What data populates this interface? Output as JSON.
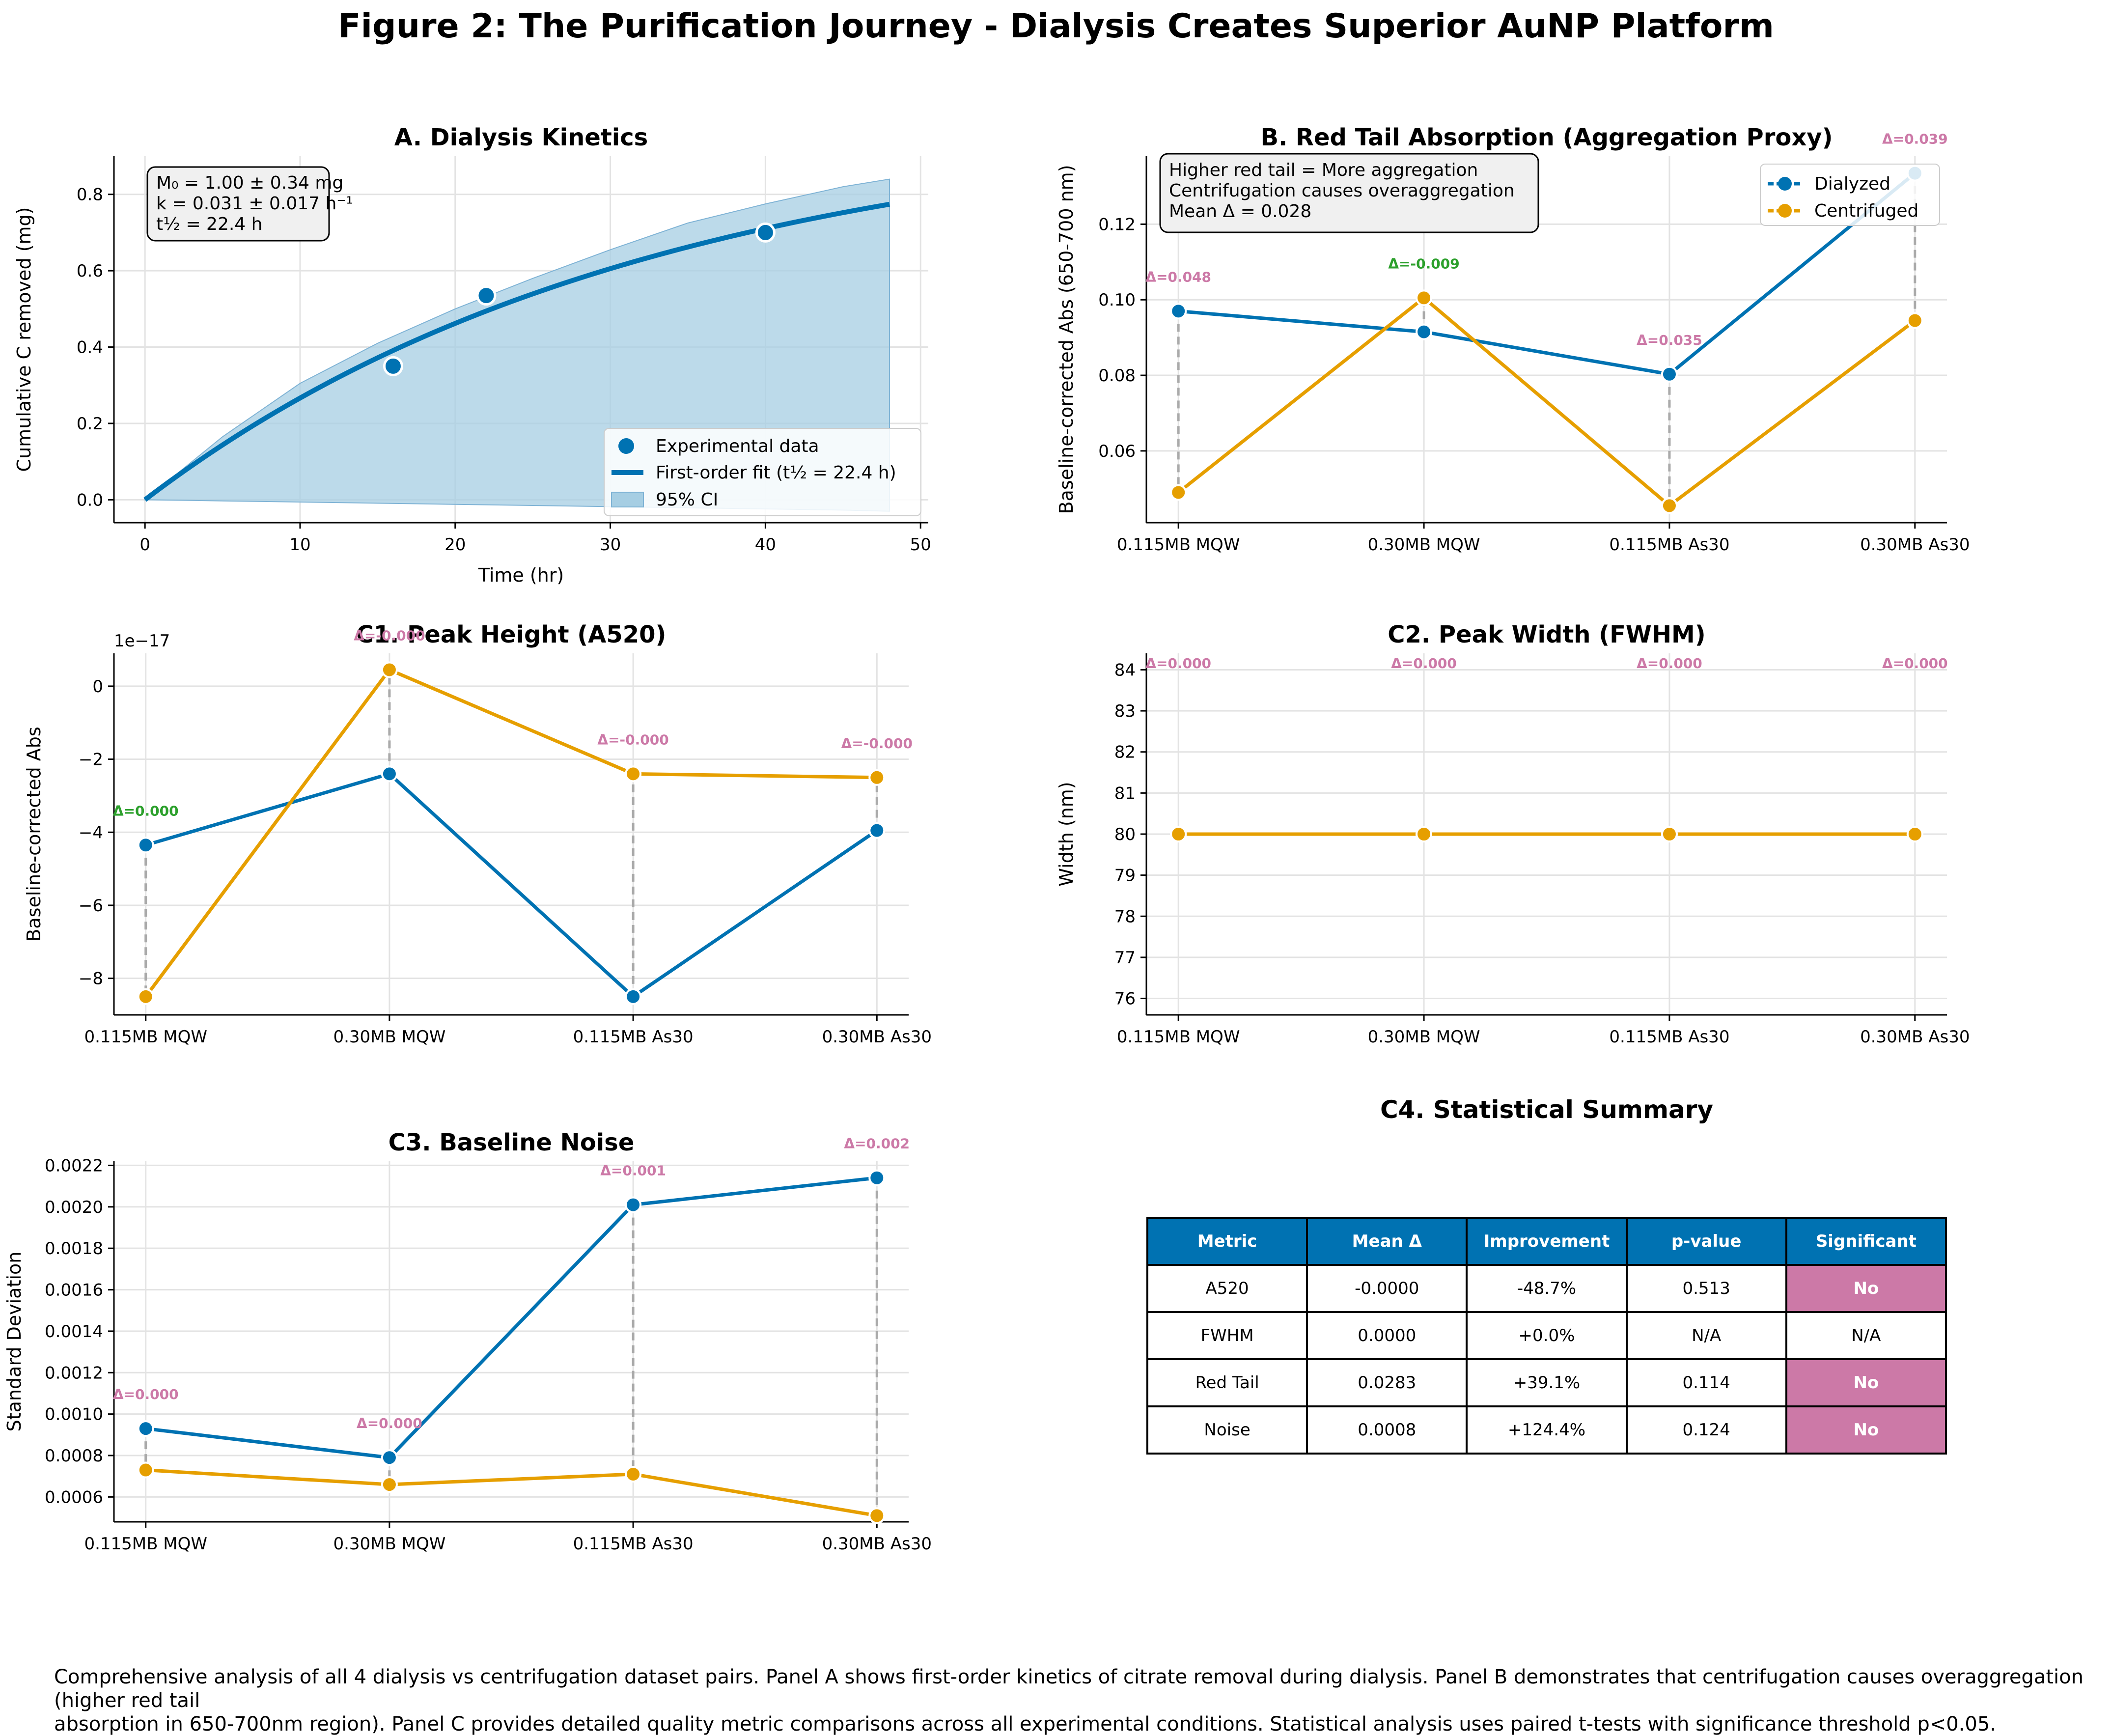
{
  "figure_title": "Figure 2: The Purification Journey - Dialysis Creates Superior AuNP Platform",
  "caption": "Comprehensive analysis of all 4 dialysis vs centrifugation dataset pairs. Panel A shows first-order kinetics of citrate removal during dialysis. Panel B demonstrates that centrifugation causes overaggregation (higher red tail\nabsorption in 650-700nm region). Panel C provides detailed quality metric comparisons across all experimental conditions. Statistical analysis uses paired t-tests with significance threshold p<0.05.",
  "colors": {
    "dialyzed": "#0072B2",
    "centrifuged": "#E69F00",
    "ci_fill": "#A6CEE3",
    "delta_pos": "#CC79A7",
    "delta_neg": "#2CA02C",
    "connector": "#AAAAAA"
  },
  "chart_data": [
    {
      "id": "A",
      "type": "line",
      "title": "A. Dialysis Kinetics",
      "xlabel": "Time (hr)",
      "ylabel": "Cumulative C removed (mg)",
      "xlim": [
        -2,
        50.5
      ],
      "ylim": [
        -0.06,
        0.9
      ],
      "xticks": [
        0,
        10,
        20,
        30,
        40,
        50
      ],
      "yticks": [
        0.0,
        0.2,
        0.4,
        0.6,
        0.8
      ],
      "grid": true,
      "legend_position": "lower-right",
      "annotation": [
        "M₀ = 1.00 ± 0.34 mg",
        "k = 0.031 ± 0.017 h⁻¹",
        "t½ = 22.4 h"
      ],
      "experimental": {
        "name": "Experimental data",
        "x": [
          16,
          22,
          40
        ],
        "y": [
          0.35,
          0.535,
          0.7
        ]
      },
      "fit": {
        "name": "First-order fit (t½ = 22.4 h)",
        "M0": 1.0,
        "k": 0.031,
        "x_max": 48
      },
      "ci": {
        "name": "95% CI",
        "x": [
          0,
          5,
          10,
          15,
          20,
          25,
          30,
          35,
          40,
          45,
          48
        ],
        "upper": [
          0,
          0.165,
          0.305,
          0.41,
          0.5,
          0.58,
          0.655,
          0.725,
          0.775,
          0.82,
          0.84
        ],
        "lower": [
          0,
          -0.003,
          -0.006,
          -0.009,
          -0.012,
          -0.015,
          -0.018,
          -0.021,
          -0.024,
          -0.027,
          -0.03
        ]
      }
    },
    {
      "id": "B",
      "type": "line",
      "title": "B. Red Tail Absorption (Aggregation Proxy)",
      "ylabel": "Baseline-corrected Abs (650-700 nm)",
      "categories": [
        "0.115MB MQW",
        "0.30MB MQW",
        "0.115MB As30",
        "0.30MB As30"
      ],
      "ylim": [
        0.041,
        0.138
      ],
      "yticks": [
        0.06,
        0.08,
        0.1,
        0.12
      ],
      "ytick_labels": [
        "0.06",
        "0.08",
        "0.10",
        "0.12"
      ],
      "grid": true,
      "legend_position": "upper-right",
      "annotation": [
        "Higher red tail = More aggregation",
        "Centrifugation causes overaggregation",
        "Mean Δ = 0.028"
      ],
      "series": [
        {
          "name": "Dialyzed",
          "values": [
            0.097,
            0.0915,
            0.0803,
            0.1335
          ]
        },
        {
          "name": "Centrifuged",
          "values": [
            0.049,
            0.1005,
            0.0455,
            0.0945
          ]
        }
      ],
      "deltas": [
        "Δ=0.048",
        "Δ=-0.009",
        "Δ=0.035",
        "Δ=0.039"
      ]
    },
    {
      "id": "C1",
      "type": "line",
      "title": "C1. Peak Height (A520)",
      "ylabel": "Baseline-corrected Abs",
      "offset_text": "1e−17",
      "categories": [
        "0.115MB MQW",
        "0.30MB MQW",
        "0.115MB As30",
        "0.30MB As30"
      ],
      "ylim": [
        -9.0,
        0.9
      ],
      "yticks": [
        0,
        -2,
        -4,
        -6,
        -8
      ],
      "ytick_labels": [
        "0",
        "−2",
        "−4",
        "−6",
        "−8"
      ],
      "grid": true,
      "series": [
        {
          "name": "Dialyzed",
          "values": [
            -4.35,
            -2.4,
            -8.5,
            -3.95
          ]
        },
        {
          "name": "Centrifuged",
          "values": [
            -8.5,
            0.45,
            -2.4,
            -2.5
          ]
        }
      ],
      "deltas": [
        "Δ=0.000",
        "Δ=-0.000",
        "Δ=-0.000",
        "Δ=-0.000"
      ]
    },
    {
      "id": "C2",
      "type": "line",
      "title": "C2. Peak Width (FWHM)",
      "ylabel": "Width (nm)",
      "categories": [
        "0.115MB MQW",
        "0.30MB MQW",
        "0.115MB As30",
        "0.30MB As30"
      ],
      "ylim": [
        75.6,
        84.4
      ],
      "yticks": [
        76,
        77,
        78,
        79,
        80,
        81,
        82,
        83,
        84
      ],
      "grid": true,
      "series": [
        {
          "name": "Dialyzed",
          "values": [
            80,
            80,
            80,
            80
          ]
        },
        {
          "name": "Centrifuged",
          "values": [
            80,
            80,
            80,
            80
          ]
        }
      ],
      "deltas": [
        "Δ=0.000",
        "Δ=0.000",
        "Δ=0.000",
        "Δ=0.000"
      ]
    },
    {
      "id": "C3",
      "type": "line",
      "title": "C3. Baseline Noise",
      "ylabel": "Standard Deviation",
      "categories": [
        "0.115MB MQW",
        "0.30MB MQW",
        "0.115MB As30",
        "0.30MB As30"
      ],
      "ylim": [
        0.00048,
        0.00222
      ],
      "yticks": [
        0.0006,
        0.0008,
        0.001,
        0.0012,
        0.0014,
        0.0016,
        0.0018,
        0.002,
        0.0022
      ],
      "ytick_labels": [
        "0.0006",
        "0.0008",
        "0.0010",
        "0.0012",
        "0.0014",
        "0.0016",
        "0.0018",
        "0.0020",
        "0.0022"
      ],
      "grid": true,
      "series": [
        {
          "name": "Dialyzed",
          "values": [
            0.00093,
            0.00079,
            0.00201,
            0.00214
          ]
        },
        {
          "name": "Centrifuged",
          "values": [
            0.00073,
            0.00066,
            0.00071,
            0.00051
          ]
        }
      ],
      "deltas": [
        "Δ=0.000",
        "Δ=0.000",
        "Δ=0.001",
        "Δ=0.002"
      ]
    },
    {
      "id": "C4",
      "type": "table",
      "title": "C4. Statistical Summary",
      "columns": [
        "Metric",
        "Mean Δ",
        "Improvement",
        "p-value",
        "Significant"
      ],
      "rows": [
        [
          "A520",
          "-0.0000",
          "-48.7%",
          "0.513",
          "No"
        ],
        [
          "FWHM",
          "0.0000",
          "+0.0%",
          "N/A",
          "N/A"
        ],
        [
          "Red Tail",
          "0.0283",
          "+39.1%",
          "0.114",
          "No"
        ],
        [
          "Noise",
          "0.0008",
          "+124.4%",
          "0.124",
          "No"
        ]
      ]
    }
  ]
}
